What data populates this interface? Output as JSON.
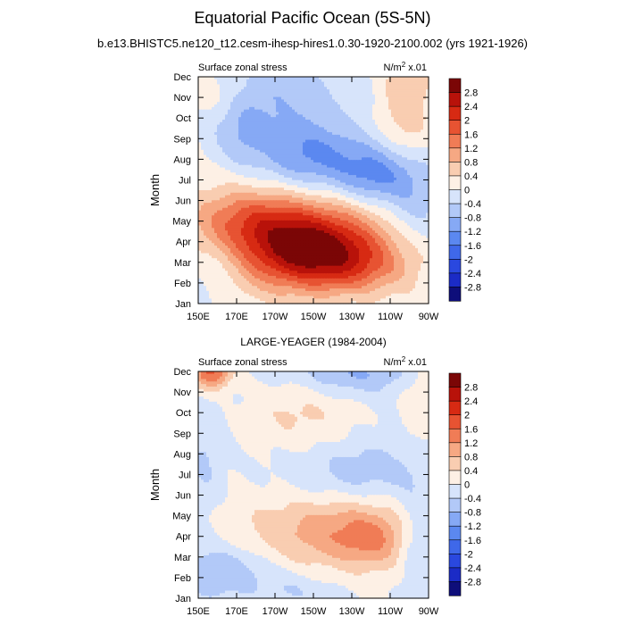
{
  "title": "Equatorial Pacific Ocean (5S-5N)",
  "subtitle": "b.e13.BHISTC5.ne120_t12.cesm-ihesp-hires1.0.30-1920-2100.002 (yrs 1921-1926)",
  "colors": {
    "levels": [
      "#0e0e7a",
      "#1b2bc6",
      "#2a48df",
      "#3f68e9",
      "#5b88f0",
      "#86a9f5",
      "#b2c9f8",
      "#d7e4fb",
      "#fdf0e5",
      "#f9cdb1",
      "#f6a883",
      "#f07c56",
      "#e75332",
      "#d72a13",
      "#b8120a",
      "#7b0606"
    ]
  },
  "chart_data": [
    {
      "type": "heatmap",
      "name": "model",
      "heading": "",
      "left_label": "Surface zonal stress",
      "right_label_main": "N/m",
      "right_label_sup": "2",
      "right_label_tail": " x.01",
      "ylabel": "Month",
      "x_ticks": [
        "150E",
        "170E",
        "170W",
        "150W",
        "130W",
        "110W",
        "90W"
      ],
      "y_ticks": [
        "Jan",
        "Feb",
        "Mar",
        "Apr",
        "May",
        "Jun",
        "Jul",
        "Aug",
        "Sep",
        "Oct",
        "Nov",
        "Dec"
      ],
      "colorbar_labels": [
        "2.8",
        "2.4",
        "2",
        "1.6",
        "1.2",
        "0.8",
        "0.4",
        "0",
        "-0.4",
        "-0.8",
        "-1.2",
        "-1.6",
        "-2",
        "-2.4",
        "-2.8"
      ],
      "xlim": [
        150,
        270
      ],
      "ylim": [
        1,
        12
      ],
      "units": "N/m2 x.01",
      "blobs": [
        {
          "lon": 195,
          "month": 4.0,
          "sx": 30,
          "sy": 1.5,
          "amp": 2.2
        },
        {
          "lon": 215,
          "month": 3.6,
          "sx": 22,
          "sy": 1.3,
          "amp": 1.2
        },
        {
          "lon": 232,
          "month": 2.8,
          "sx": 22,
          "sy": 1.0,
          "amp": 0.9
        },
        {
          "lon": 175,
          "month": 5.4,
          "sx": 20,
          "sy": 1.0,
          "amp": 0.6
        },
        {
          "lon": 210,
          "month": 8.2,
          "sx": 20,
          "sy": 1.2,
          "amp": -1.2
        },
        {
          "lon": 245,
          "month": 7.2,
          "sx": 16,
          "sy": 1.0,
          "amp": -1.3
        },
        {
          "lon": 190,
          "month": 11.2,
          "sx": 25,
          "sy": 1.6,
          "amp": -0.7
        },
        {
          "lon": 172,
          "month": 9.3,
          "sx": 10,
          "sy": 1.1,
          "amp": -0.5
        },
        {
          "lon": 160,
          "month": 3.0,
          "sx": 14,
          "sy": 1.0,
          "amp": -0.6
        },
        {
          "lon": 160,
          "month": 11.3,
          "sx": 12,
          "sy": 1.0,
          "amp": 0.5
        },
        {
          "lon": 258,
          "month": 10.8,
          "sx": 10,
          "sy": 2.2,
          "amp": 0.8
        },
        {
          "lon": 262,
          "month": 5.5,
          "sx": 10,
          "sy": 1.2,
          "amp": -0.5
        }
      ]
    },
    {
      "type": "heatmap",
      "name": "obs",
      "heading": "LARGE-YEAGER (1984-2004)",
      "left_label": "Surface zonal stress",
      "right_label_main": "N/m",
      "right_label_sup": "2",
      "right_label_tail": " x.01",
      "ylabel": "Month",
      "x_ticks": [
        "150E",
        "170E",
        "170W",
        "150W",
        "130W",
        "110W",
        "90W"
      ],
      "y_ticks": [
        "Jan",
        "Feb",
        "Mar",
        "Apr",
        "May",
        "Jun",
        "Jul",
        "Aug",
        "Sep",
        "Oct",
        "Nov",
        "Dec"
      ],
      "colorbar_labels": [
        "2.8",
        "2.4",
        "2",
        "1.6",
        "1.2",
        "0.8",
        "0.4",
        "0",
        "-0.4",
        "-0.8",
        "-1.2",
        "-1.6",
        "-2",
        "-2.4",
        "-2.8"
      ],
      "xlim": [
        150,
        270
      ],
      "ylim": [
        1,
        12
      ],
      "units": "N/m2 x.01",
      "blobs": [
        {
          "lon": 218,
          "month": 4.2,
          "sx": 30,
          "sy": 1.3,
          "amp": 1.1
        },
        {
          "lon": 240,
          "month": 3.8,
          "sx": 12,
          "sy": 0.9,
          "amp": 0.6
        },
        {
          "lon": 200,
          "month": 9.8,
          "sx": 18,
          "sy": 1.1,
          "amp": 0.45
        },
        {
          "lon": 157,
          "month": 12.0,
          "sx": 7,
          "sy": 0.6,
          "amp": 1.8
        },
        {
          "lon": 165,
          "month": 2.3,
          "sx": 18,
          "sy": 1.0,
          "amp": -0.8
        },
        {
          "lon": 235,
          "month": 7.1,
          "sx": 22,
          "sy": 1.1,
          "amp": -0.7
        },
        {
          "lon": 230,
          "month": 11.9,
          "sx": 22,
          "sy": 0.7,
          "amp": -0.8
        },
        {
          "lon": 153,
          "month": 7.6,
          "sx": 7,
          "sy": 2.0,
          "amp": -0.5
        },
        {
          "lon": 264,
          "month": 3.5,
          "sx": 7,
          "sy": 2.0,
          "amp": -0.6
        },
        {
          "lon": 200,
          "month": 1.4,
          "sx": 12,
          "sy": 0.6,
          "amp": -0.4
        },
        {
          "lon": 264,
          "month": 10.5,
          "sx": 6,
          "sy": 1.4,
          "amp": 0.4
        }
      ]
    }
  ]
}
